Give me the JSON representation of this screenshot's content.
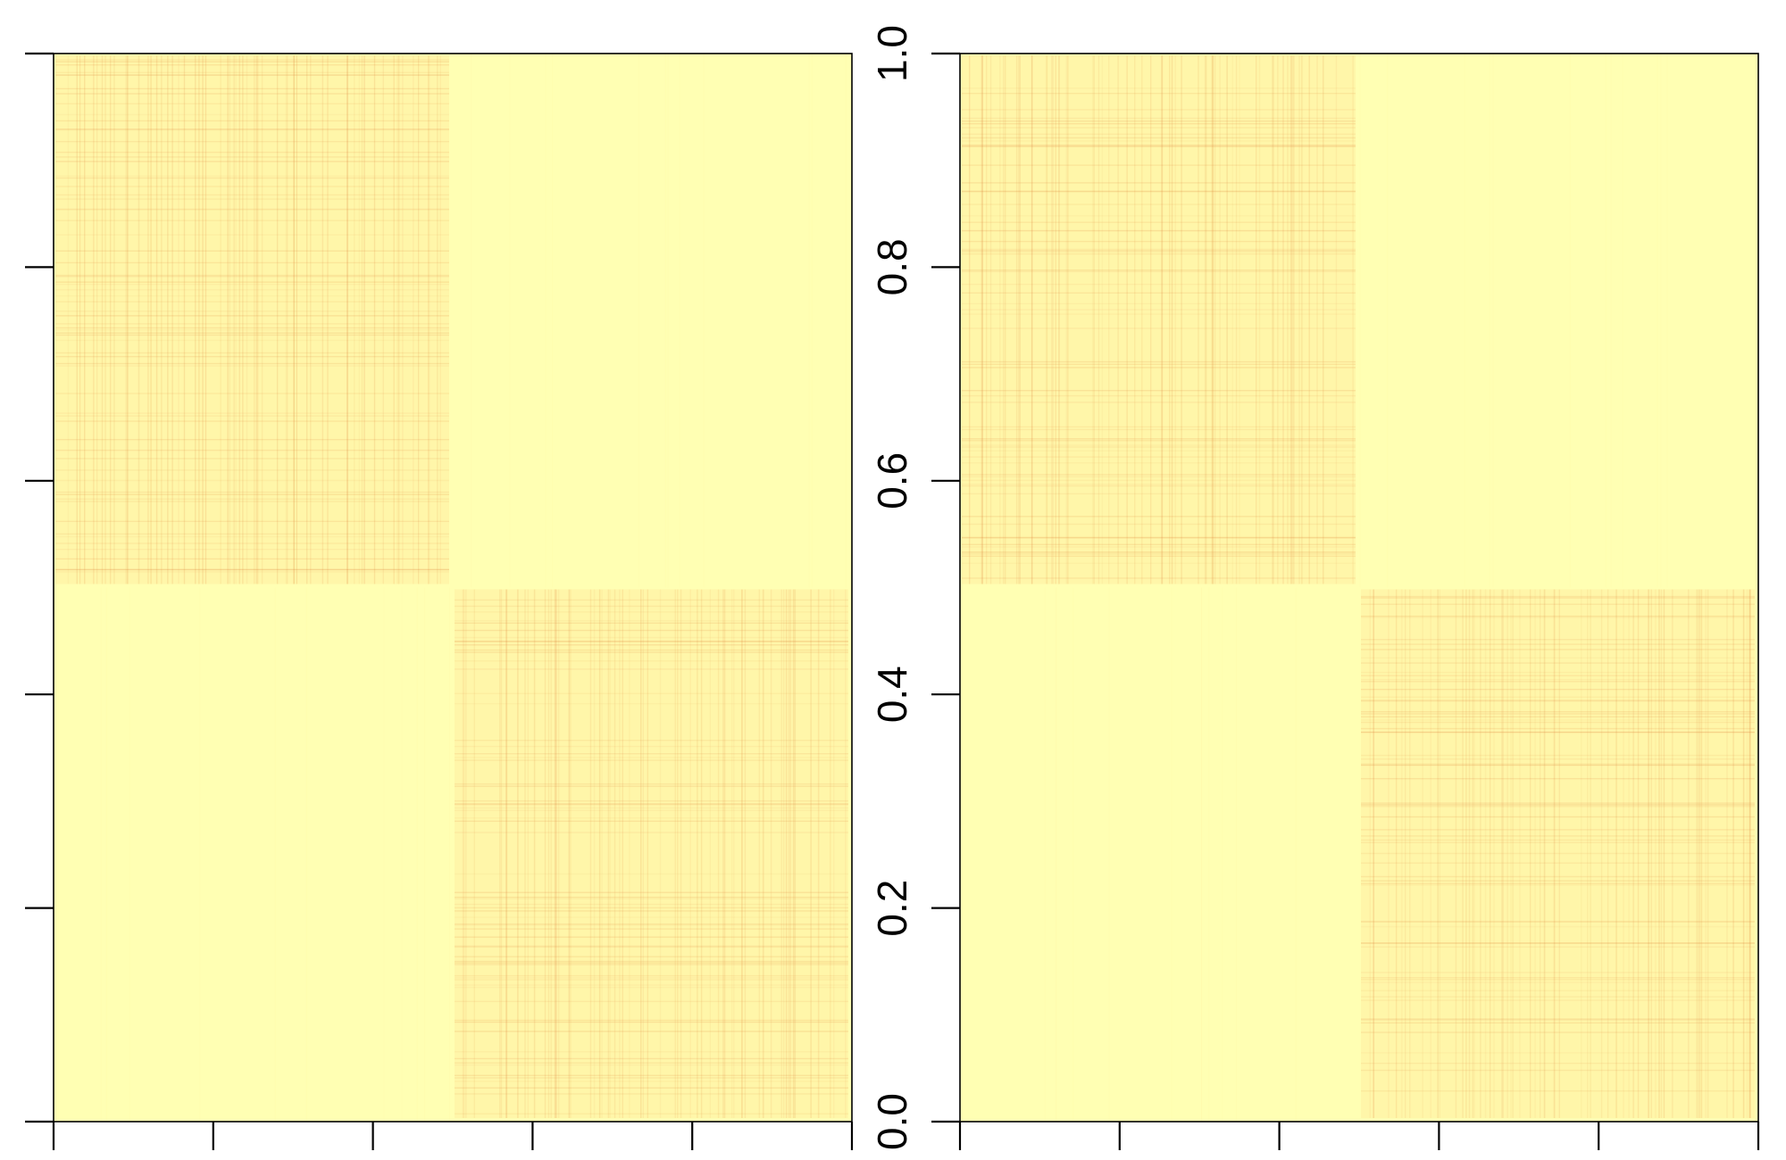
{
  "chart_data": [
    {
      "type": "heatmap",
      "panel": "left",
      "title": "",
      "xlabel": "",
      "ylabel": "",
      "xlim": [
        0,
        1
      ],
      "ylim": [
        0,
        1
      ],
      "x_ticks": [
        0,
        0.2,
        0.4,
        0.6,
        0.8,
        1.0
      ],
      "y_ticks": [
        0,
        0.2,
        0.4,
        0.6,
        0.8,
        1.0
      ],
      "x_tick_labels": [],
      "y_tick_labels": [],
      "grid": false,
      "legend": "none",
      "blocks": [
        {
          "x_range": [
            0,
            0.5
          ],
          "y_range": [
            0.5,
            1.0
          ],
          "level": "high"
        },
        {
          "x_range": [
            0.5,
            1.0
          ],
          "y_range": [
            0.0,
            0.5
          ],
          "level": "high"
        },
        {
          "x_range": [
            0.5,
            1.0
          ],
          "y_range": [
            0.5,
            1.0
          ],
          "level": "low"
        },
        {
          "x_range": [
            0,
            0.5
          ],
          "y_range": [
            0.0,
            0.5
          ],
          "level": "low"
        }
      ],
      "colors": {
        "low": "#ffffb3",
        "medium": "#fdd58a",
        "high": "#e0823a"
      }
    },
    {
      "type": "heatmap",
      "panel": "right",
      "title": "",
      "xlabel": "",
      "ylabel": "",
      "xlim": [
        0,
        1
      ],
      "ylim": [
        0,
        1
      ],
      "x_ticks": [
        0,
        0.2,
        0.4,
        0.6,
        0.8,
        1.0
      ],
      "y_ticks": [
        0,
        0.2,
        0.4,
        0.6,
        0.8,
        1.0
      ],
      "x_tick_labels": [],
      "y_tick_labels": [
        "0.0",
        "0.2",
        "0.4",
        "0.6",
        "0.8",
        "1.0"
      ],
      "y_axis_side": "left",
      "grid": false,
      "legend": "none",
      "blocks": [
        {
          "x_range": [
            0,
            0.5
          ],
          "y_range": [
            0.5,
            1.0
          ],
          "level": "high"
        },
        {
          "x_range": [
            0.5,
            1.0
          ],
          "y_range": [
            0.0,
            0.5
          ],
          "level": "high"
        },
        {
          "x_range": [
            0.5,
            1.0
          ],
          "y_range": [
            0.5,
            1.0
          ],
          "level": "low"
        },
        {
          "x_range": [
            0,
            0.5
          ],
          "y_range": [
            0.0,
            0.5
          ],
          "level": "low"
        }
      ],
      "colors": {
        "low": "#ffffb3",
        "medium": "#fdd58a",
        "high": "#e0823a"
      }
    }
  ]
}
